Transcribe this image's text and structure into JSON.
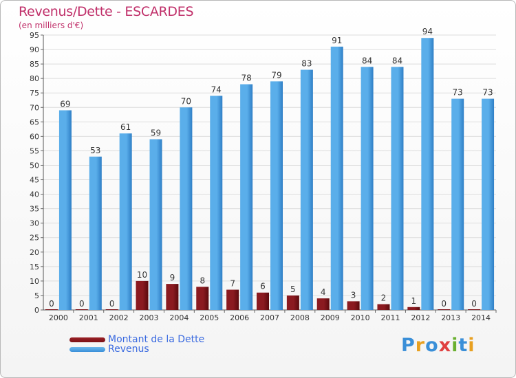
{
  "title": "Revenus/Dette - ESCARDES",
  "subtitle": "(en milliers d'€)",
  "colors": {
    "title": "#c0306a",
    "dette": "#7a1016",
    "revenus": "#3a8fd8",
    "legend_text": "#3a6ae0"
  },
  "legend": {
    "dette": "Montant de la Dette",
    "revenus": "Revenus"
  },
  "logo": "Proxiti",
  "chart_data": {
    "type": "bar",
    "title": "Revenus/Dette - ESCARDES",
    "subtitle": "(en milliers d'€)",
    "categories": [
      "2000",
      "2001",
      "2002",
      "2003",
      "2004",
      "2005",
      "2006",
      "2007",
      "2008",
      "2009",
      "2010",
      "2011",
      "2012",
      "2013",
      "2014"
    ],
    "series": [
      {
        "name": "Montant de la Dette",
        "values": [
          0,
          0,
          0,
          10,
          9,
          8,
          7,
          6,
          5,
          4,
          3,
          2,
          1,
          0,
          0
        ]
      },
      {
        "name": "Revenus",
        "values": [
          69,
          53,
          61,
          59,
          70,
          74,
          78,
          79,
          83,
          91,
          84,
          84,
          94,
          73,
          73
        ]
      }
    ],
    "ylim": [
      0,
      95
    ],
    "yticks": [
      0,
      5,
      10,
      15,
      20,
      25,
      30,
      35,
      40,
      45,
      50,
      55,
      60,
      65,
      70,
      75,
      80,
      85,
      90,
      95
    ],
    "grid": true,
    "legend_position": "bottom-left"
  }
}
